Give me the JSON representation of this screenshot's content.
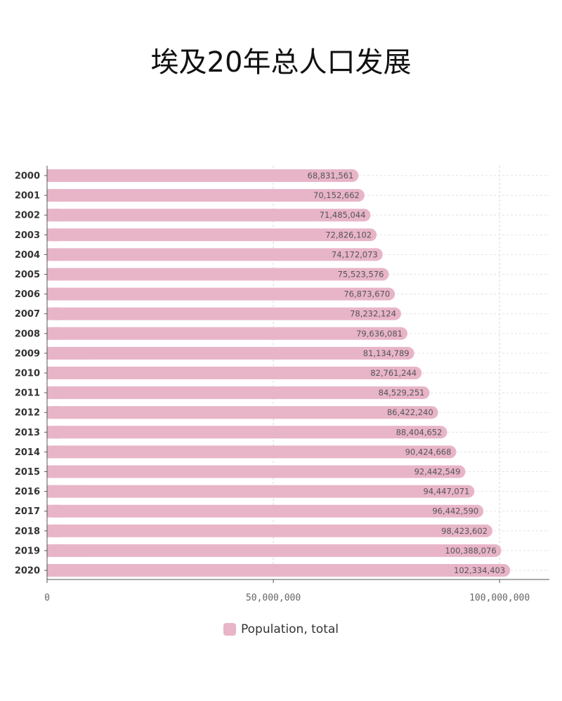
{
  "chart_data": {
    "type": "bar",
    "orientation": "horizontal",
    "title": "埃及20年总人口发展",
    "categories": [
      "2000",
      "2001",
      "2002",
      "2003",
      "2004",
      "2005",
      "2006",
      "2007",
      "2008",
      "2009",
      "2010",
      "2011",
      "2012",
      "2013",
      "2014",
      "2015",
      "2016",
      "2017",
      "2018",
      "2019",
      "2020"
    ],
    "series": [
      {
        "name": "Population, total",
        "color": "#e8b4c8",
        "values": [
          68831561,
          70152662,
          71485044,
          72826102,
          74172073,
          75523576,
          76873670,
          78232124,
          79636081,
          81134789,
          82761244,
          84529251,
          86422240,
          88404652,
          90424668,
          92442549,
          94447071,
          96442590,
          98423602,
          100388076,
          102334403
        ],
        "value_labels": [
          "68,831,561",
          "70,152,662",
          "71,485,044",
          "72,826,102",
          "74,172,073",
          "75,523,576",
          "76,873,670",
          "78,232,124",
          "79,636,081",
          "81,134,789",
          "82,761,244",
          "84,529,251",
          "86,422,240",
          "88,404,652",
          "90,424,668",
          "92,442,549",
          "94,447,071",
          "96,442,590",
          "98,423,602",
          "100,388,076",
          "102,334,403"
        ]
      }
    ],
    "xlim": [
      0,
      111000000
    ],
    "x_ticks": [
      0,
      50000000,
      100000000
    ],
    "x_tick_labels": [
      "0",
      "50,000,000",
      "100,000,000"
    ],
    "grid": true,
    "legend_position": "bottom"
  }
}
